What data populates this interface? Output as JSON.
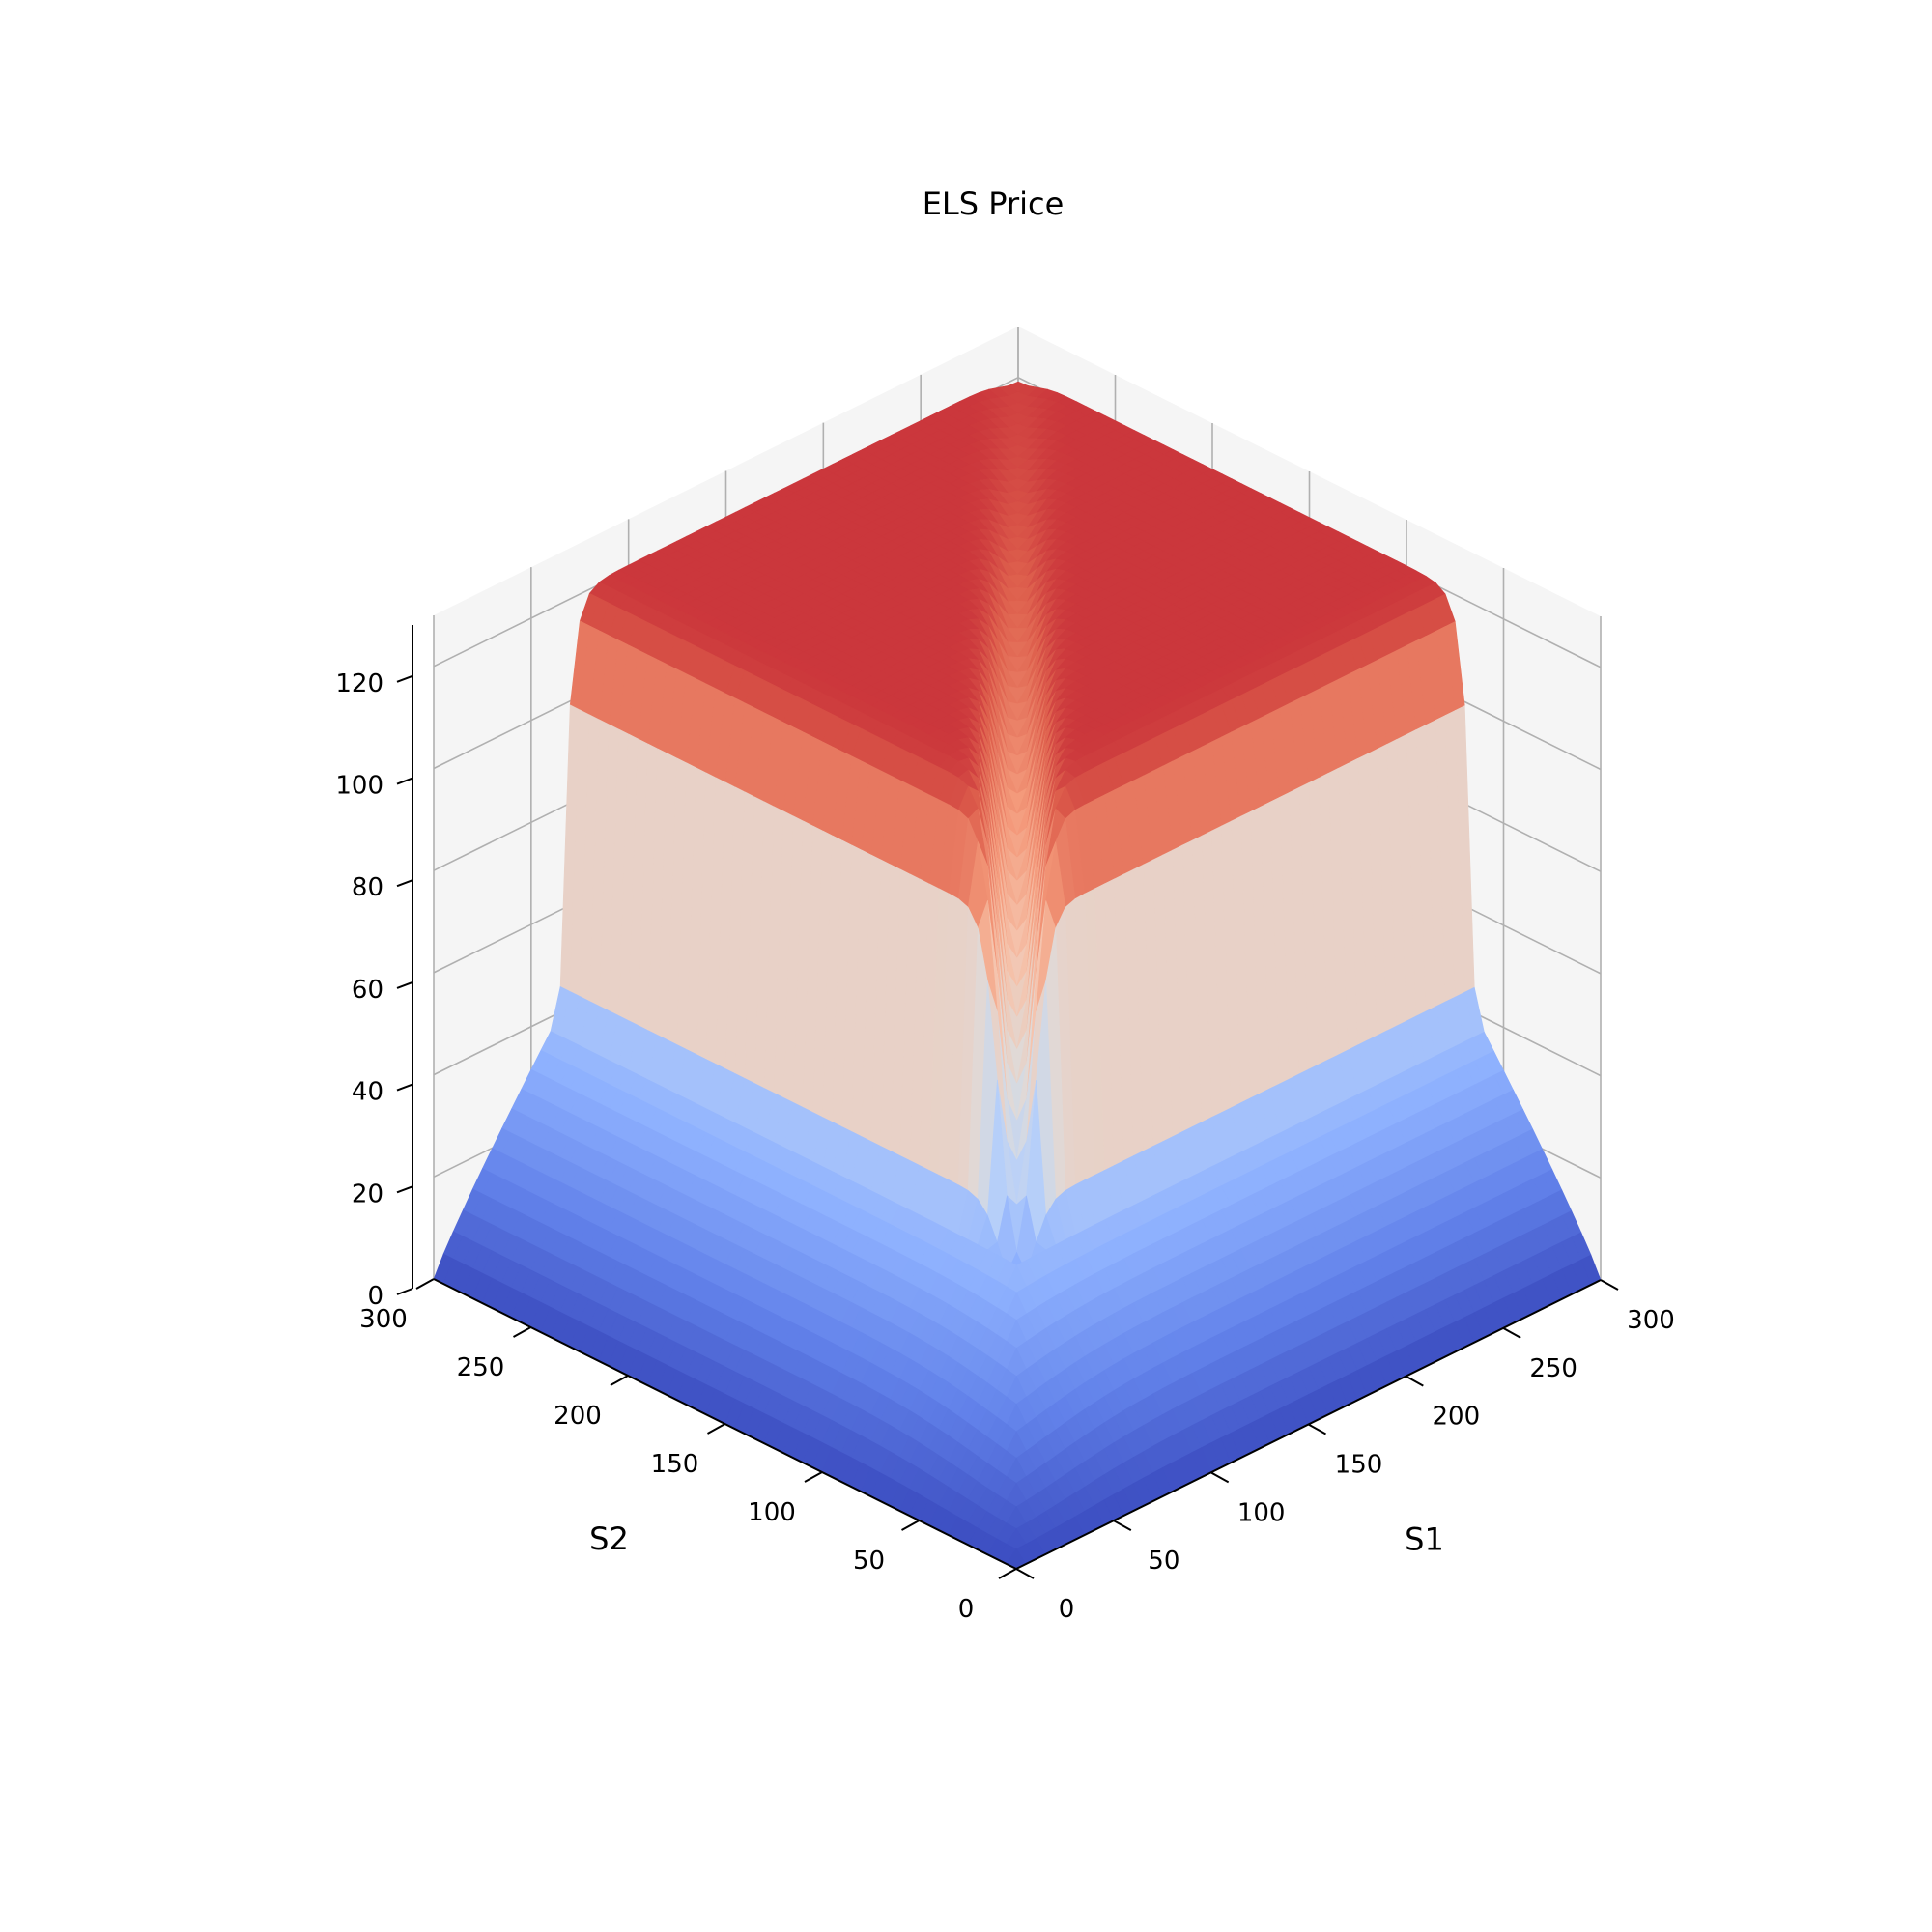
{
  "chart_data": {
    "type": "surface3d",
    "title": "ELS Price",
    "xlabel": "S1",
    "ylabel": "S2",
    "zlabel": "",
    "colormap": "coolwarm",
    "xlim": [
      0,
      300
    ],
    "ylim": [
      0,
      300
    ],
    "zlim": [
      0,
      130
    ],
    "xticks": [
      0,
      50,
      100,
      150,
      200,
      250,
      300
    ],
    "yticks": [
      0,
      50,
      100,
      150,
      200,
      250,
      300
    ],
    "zticks": [
      0,
      20,
      40,
      60,
      80,
      100,
      120
    ],
    "grid": true,
    "surface": {
      "barrier_level": 65,
      "near_barrier_value": 45,
      "upper_plateau_value": 121,
      "lower_region_max_value": 40,
      "lower_region_at_zero": 0,
      "diagonal_dip_min_value": 30
    }
  }
}
